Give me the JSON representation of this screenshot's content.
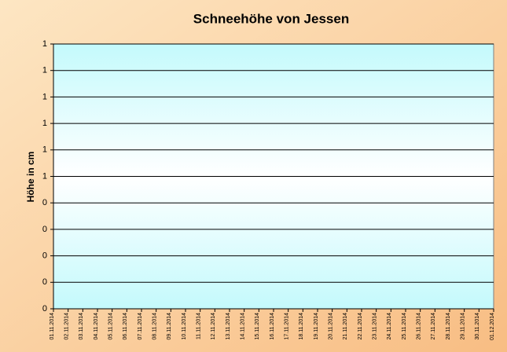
{
  "chart_data": {
    "type": "line",
    "title": "Schneehöhe von Jessen",
    "y_label": "Höhe in cm",
    "x": [
      "01.11.2014",
      "02.11.2014",
      "03.11.2014",
      "04.11.2014",
      "05.11.2014",
      "06.11.2014",
      "07.11.2014",
      "08.11.2014",
      "09.11.2014",
      "10.11.2014",
      "11.11.2014",
      "12.11.2014",
      "13.11.2014",
      "14.11.2014",
      "15.11.2014",
      "16.11.2014",
      "17.11.2014",
      "18.11.2014",
      "19.11.2014",
      "20.11.2014",
      "21.11.2014",
      "22.11.2014",
      "23.11.2014",
      "24.11.2014",
      "25.11.2014",
      "26.11.2014",
      "27.11.2014",
      "28.11.2014",
      "29.11.2014",
      "30.11.2014",
      "01.12.2014"
    ],
    "values": [
      null,
      null,
      null,
      null,
      null,
      null,
      null,
      null,
      null,
      null,
      null,
      null,
      null,
      null,
      null,
      null,
      null,
      null,
      null,
      null,
      null,
      null,
      null,
      null,
      null,
      null,
      null,
      null,
      null,
      null,
      null
    ],
    "color": "#000080",
    "ylim": [
      0,
      1
    ],
    "yticks": [
      0,
      {
        "value": 0.1,
        "label": "0"
      },
      {
        "value": 0.2,
        "label": "0"
      },
      {
        "value": 0.3,
        "label": "0"
      },
      {
        "value": 0.4,
        "label": "0"
      },
      {
        "value": 0.5,
        "label": "1"
      },
      {
        "value": 0.6,
        "label": "1"
      },
      {
        "value": 0.7,
        "label": "1"
      },
      {
        "value": 0.8,
        "label": "1"
      },
      {
        "value": 0.9,
        "label": "1"
      },
      1
    ],
    "grid": true
  }
}
